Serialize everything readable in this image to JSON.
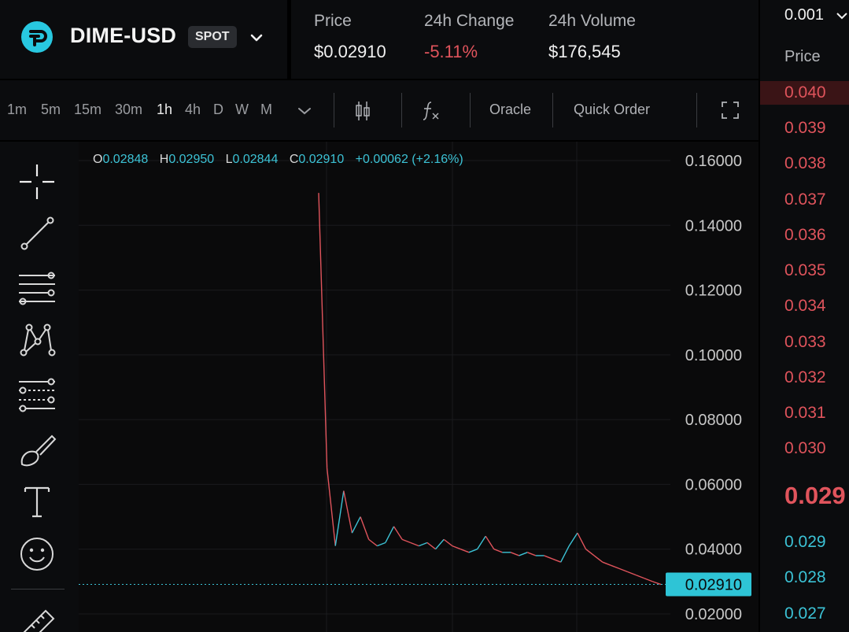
{
  "market": {
    "pair": "DIME-USD",
    "badge": "SPOT"
  },
  "stats": {
    "price_label": "Price",
    "price_value": "$0.02910",
    "change_label": "24h Change",
    "change_value": "-5.11%",
    "volume_label": "24h Volume",
    "volume_value": "$176,545"
  },
  "toolbar": {
    "timeframes": [
      "1m",
      "5m",
      "15m",
      "30m",
      "1h",
      "4h",
      "D",
      "W",
      "M"
    ],
    "active_timeframe": "1h",
    "oracle_label": "Oracle",
    "quick_order_label": "Quick Order",
    "icons": [
      "chevron-down-icon",
      "candlestick-icon",
      "function-icon",
      "fullscreen-icon"
    ]
  },
  "drawing_tools": [
    "crosshair-icon",
    "trend-line-icon",
    "horizontal-lines-icon",
    "pattern-icon",
    "fib-retracement-icon",
    "brush-icon",
    "text-icon",
    "emoji-icon",
    "ruler-icon"
  ],
  "ohlc": {
    "o_label": "O",
    "o_value": "0.02848",
    "h_label": "H",
    "h_value": "0.02950",
    "l_label": "L",
    "l_value": "0.02844",
    "c_label": "C",
    "c_value": "0.02910",
    "change": "+0.00062 (+2.16%)"
  },
  "chart_data": {
    "type": "line",
    "price_axis_labels": [
      "0.16000",
      "0.14000",
      "0.12000",
      "0.10000",
      "0.08000",
      "0.06000",
      "0.04000",
      "0.02000"
    ],
    "ylim": [
      0.02,
      0.16
    ],
    "current_price_label": "0.02910",
    "current_price": 0.0291,
    "x": [
      0,
      1,
      2,
      3,
      4,
      5,
      6,
      7,
      8,
      9,
      10,
      11,
      12,
      13,
      14,
      15,
      16,
      17,
      18,
      19,
      20,
      21,
      22,
      23,
      24,
      25,
      26,
      27,
      28,
      29,
      30,
      31,
      32,
      33,
      34,
      35,
      36,
      37,
      38,
      39,
      40,
      41
    ],
    "series": [
      {
        "values": [
          0.15,
          0.065,
          0.041,
          0.058,
          0.045,
          0.05,
          0.043,
          0.041,
          0.042,
          0.047,
          0.043,
          0.042,
          0.041,
          0.042,
          0.04,
          0.043,
          0.041,
          0.04,
          0.039,
          0.04,
          0.044,
          0.04,
          0.039,
          0.039,
          0.038,
          0.039,
          0.038,
          0.038,
          0.037,
          0.036,
          0.041,
          0.045,
          0.04,
          0.038,
          0.036,
          0.035,
          0.034,
          0.033,
          0.032,
          0.031,
          0.03,
          0.0291
        ]
      }
    ],
    "grid": true,
    "colors": {
      "up": "#3cc3d6",
      "down": "#e0545c"
    }
  },
  "order_book": {
    "tick_size": "0.001",
    "header_price": "Price",
    "asks": [
      "0.040",
      "0.039",
      "0.038",
      "0.037",
      "0.036",
      "0.035",
      "0.034",
      "0.033",
      "0.032",
      "0.031",
      "0.030"
    ],
    "mid_price": "0.029",
    "bids": [
      "0.029",
      "0.028",
      "0.027"
    ]
  }
}
